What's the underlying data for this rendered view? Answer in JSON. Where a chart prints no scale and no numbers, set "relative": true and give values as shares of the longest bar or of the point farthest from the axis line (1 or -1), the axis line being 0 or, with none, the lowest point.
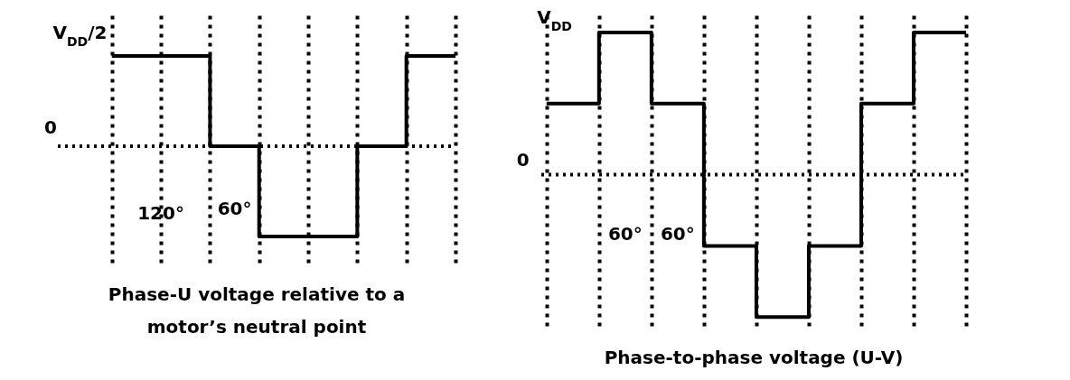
{
  "chart_data": [
    {
      "type": "step",
      "title": "Phase-U voltage relative to a motor’s neutral point",
      "relative": true,
      "categories": [
        null,
        null,
        null,
        null,
        null,
        null,
        null,
        null
      ],
      "series": [
        {
          "color": "#000000",
          "values": [
            1,
            1,
            0,
            -1,
            -1,
            0,
            1,
            1
          ]
        }
      ],
      "tick_labels": false,
      "grid": "x",
      "marker": "none",
      "line_style": "solid",
      "annotations": [
        "V$_{DD}$/2",
        "0",
        "120°",
        "60°"
      ]
    },
    {
      "type": "step",
      "title": "Phase-to-phase voltage (U-V)",
      "relative": true,
      "categories": [
        null,
        null,
        null,
        null,
        null,
        null,
        null,
        null,
        null
      ],
      "series": [
        {
          "color": "#000000",
          "values": [
            0.5,
            1,
            0.5,
            -0.5,
            -1,
            -0.5,
            0.5,
            1,
            1
          ]
        }
      ],
      "tick_labels": false,
      "grid": "x",
      "marker": "none",
      "line_style": "solid",
      "annotations": [
        "V$_{DD}$",
        "0",
        "60°",
        "60°"
      ]
    }
  ]
}
